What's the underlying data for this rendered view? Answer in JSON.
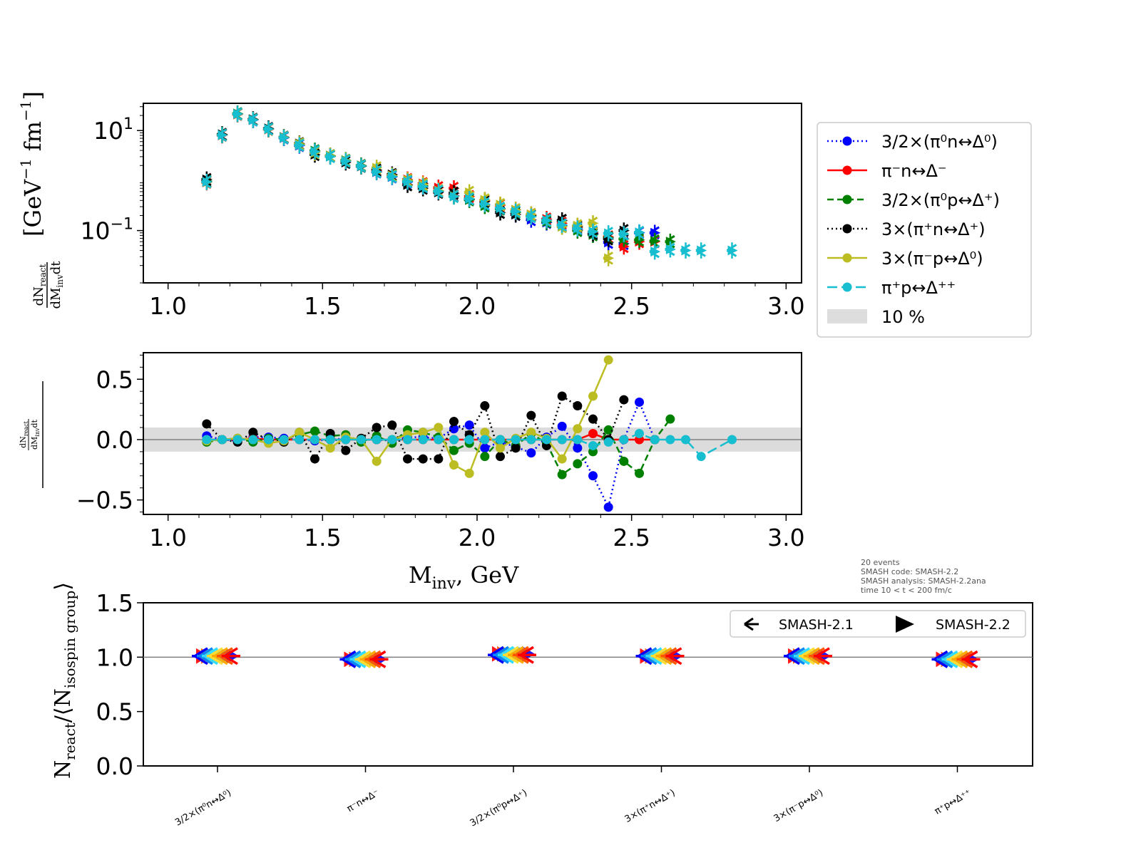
{
  "info_box": {
    "line1": "20 events",
    "line2": "SMASH code:      SMASH-2.2",
    "line3": "SMASH analysis: SMASH-2.2ana",
    "line4": "time 10 < t < 200 fm/c"
  },
  "chart_data": [
    {
      "type": "scatter",
      "panel": "top",
      "ylabel_prefix": "dN",
      "ylabel_prefix_sub": "react",
      "ylabel_denominator": "dM",
      "ylabel_denominator_sub": "inv",
      "ylabel_denominator_suffix": "dt",
      "ylabel_units": "[GeV",
      "ylabel_units_sup": "−1",
      "ylabel_units_tail": "fm",
      "ylabel_units_tail_sup": "−1",
      "ylabel_units_close": "]",
      "yscale": "log",
      "ylim": [
        0.009,
        35
      ],
      "xlim": [
        0.92,
        3.05
      ],
      "xticks": [
        "1.0",
        "1.5",
        "2.0",
        "2.5",
        "3.0"
      ],
      "yticks": [
        {
          "value": 10,
          "base": "10",
          "exp": "1"
        },
        {
          "value": 0.1,
          "base": "10",
          "exp": "−1"
        }
      ],
      "error_bars": true,
      "markers": "SMASH-2.1 (tri-left) and SMASH-2.2 (triangle-right), overlaid",
      "series": [
        {
          "name": "3/2×(π⁰n↔Δ⁰)",
          "color": "#0000ff",
          "x": [
            1.125,
            1.175,
            1.225,
            1.275,
            1.325,
            1.375,
            1.425,
            1.475,
            1.525,
            1.575,
            1.625,
            1.675,
            1.725,
            1.775,
            1.825,
            1.875,
            1.925,
            1.975,
            2.025,
            2.075,
            2.125,
            2.175,
            2.225,
            2.275,
            2.325,
            2.375,
            2.425,
            2.475,
            2.525,
            2.575
          ],
          "y": [
            0.95,
            8.2,
            21.5,
            16.2,
            10.8,
            7.1,
            5.0,
            3.8,
            3.05,
            2.45,
            1.95,
            1.48,
            1.18,
            0.93,
            0.75,
            0.61,
            0.5,
            0.42,
            0.33,
            0.27,
            0.21,
            0.165,
            0.145,
            0.128,
            0.105,
            0.085,
            0.058,
            0.055,
            0.09,
            0.09
          ]
        },
        {
          "name": "π⁻n↔Δ⁻",
          "color": "#ff0000",
          "x": [
            1.125,
            1.175,
            1.225,
            1.275,
            1.325,
            1.375,
            1.425,
            1.475,
            1.525,
            1.575,
            1.625,
            1.675,
            1.725,
            1.775,
            1.825,
            1.875,
            1.925,
            1.975,
            2.025,
            2.075,
            2.125,
            2.175,
            2.225,
            2.275,
            2.325,
            2.375,
            2.425,
            2.475,
            2.525,
            2.575
          ],
          "y": [
            0.92,
            8.0,
            21.0,
            16.5,
            10.5,
            7.2,
            5.1,
            3.85,
            3.1,
            2.5,
            2.0,
            1.55,
            1.3,
            1.05,
            0.87,
            0.72,
            0.7,
            0.48,
            0.4,
            0.32,
            0.26,
            0.21,
            0.17,
            0.14,
            0.115,
            0.092,
            0.075,
            0.048,
            0.06,
            0.06
          ]
        },
        {
          "name": "3/2×(π⁰p↔Δ⁺)",
          "color": "#008000",
          "x": [
            1.125,
            1.175,
            1.225,
            1.275,
            1.325,
            1.375,
            1.425,
            1.475,
            1.525,
            1.575,
            1.625,
            1.675,
            1.725,
            1.775,
            1.825,
            1.875,
            1.925,
            1.975,
            2.025,
            2.075,
            2.125,
            2.175,
            2.225,
            2.275,
            2.325,
            2.375,
            2.425,
            2.475,
            2.525,
            2.575,
            2.625
          ],
          "y": [
            0.98,
            8.3,
            21.8,
            16.6,
            10.9,
            7.3,
            5.2,
            3.95,
            3.15,
            2.55,
            2.0,
            1.5,
            1.22,
            0.98,
            0.79,
            0.63,
            0.48,
            0.41,
            0.31,
            0.27,
            0.23,
            0.19,
            0.15,
            0.12,
            0.1,
            0.082,
            0.072,
            0.068,
            0.065,
            0.062,
            0.06
          ]
        },
        {
          "name": "3×(π⁺n↔Δ⁺)",
          "color": "#000000",
          "x": [
            1.125,
            1.175,
            1.225,
            1.275,
            1.325,
            1.375,
            1.425,
            1.475,
            1.525,
            1.575,
            1.625,
            1.675,
            1.725,
            1.775,
            1.825,
            1.875,
            1.925,
            1.975,
            2.025,
            2.075,
            2.125,
            2.175,
            2.225,
            2.275,
            2.325,
            2.375,
            2.425,
            2.475
          ],
          "y": [
            1.05,
            8.4,
            21.3,
            16.8,
            11.0,
            7.4,
            5.5,
            3.3,
            3.1,
            2.3,
            1.92,
            1.62,
            1.32,
            0.82,
            0.7,
            0.58,
            0.56,
            0.43,
            0.38,
            0.23,
            0.21,
            0.2,
            0.16,
            0.16,
            0.12,
            0.088,
            0.068,
            0.1
          ]
        },
        {
          "name": "3×(π⁻p↔Δ⁰)",
          "color": "#bcbd22",
          "x": [
            1.125,
            1.175,
            1.225,
            1.275,
            1.325,
            1.375,
            1.425,
            1.475,
            1.525,
            1.575,
            1.625,
            1.675,
            1.725,
            1.775,
            1.825,
            1.875,
            1.925,
            1.975,
            2.025,
            2.075,
            2.125,
            2.175,
            2.225,
            2.275,
            2.325,
            2.375,
            2.425
          ],
          "y": [
            0.93,
            8.1,
            21.2,
            16.4,
            10.6,
            7.3,
            5.4,
            3.6,
            3.12,
            2.5,
            1.96,
            1.8,
            1.26,
            1.02,
            0.84,
            0.63,
            0.49,
            0.58,
            0.41,
            0.33,
            0.26,
            0.21,
            0.16,
            0.12,
            0.125,
            0.14,
            0.028
          ]
        },
        {
          "name": "π⁺p↔Δ⁺⁺",
          "color": "#17becf",
          "x": [
            1.125,
            1.175,
            1.225,
            1.275,
            1.325,
            1.375,
            1.425,
            1.475,
            1.525,
            1.575,
            1.625,
            1.675,
            1.725,
            1.775,
            1.825,
            1.875,
            1.925,
            1.975,
            2.025,
            2.075,
            2.125,
            2.175,
            2.225,
            2.275,
            2.325,
            2.375,
            2.425,
            2.475,
            2.525,
            2.575,
            2.625,
            2.675,
            2.725,
            2.825
          ],
          "y": [
            0.94,
            8.1,
            21.4,
            16.3,
            10.7,
            7.2,
            5.1,
            3.8,
            3.0,
            2.45,
            1.95,
            1.5,
            1.2,
            0.95,
            0.76,
            0.61,
            0.48,
            0.43,
            0.34,
            0.28,
            0.24,
            0.19,
            0.16,
            0.13,
            0.11,
            0.095,
            0.088,
            0.085,
            0.092,
            0.038,
            0.042,
            0.04,
            0.04,
            0.04
          ]
        }
      ]
    },
    {
      "type": "line",
      "panel": "middle",
      "xlabel": "M",
      "xlabel_sub": "inv",
      "xlabel_tail": ", GeV",
      "ylabel_numerator": {
        "prefix": "dN",
        "sub": "react",
        "den": "dM",
        "den_sub": "inv",
        "den_tail": "dt"
      },
      "ylim": [
        -0.62,
        0.72
      ],
      "xlim": [
        0.92,
        3.05
      ],
      "xticks": [
        "1.0",
        "1.5",
        "2.0",
        "2.5",
        "3.0"
      ],
      "yticks": [
        "0.5",
        "0.0",
        "−0.5"
      ],
      "yticks_values": [
        0.5,
        0.0,
        -0.5
      ],
      "band": [
        -0.1,
        0.1
      ],
      "series": [
        {
          "name": "3/2×(π⁰n↔Δ⁰)",
          "color": "#0000ff",
          "dash": "2,4",
          "x": [
            1.125,
            1.175,
            1.225,
            1.275,
            1.325,
            1.375,
            1.425,
            1.475,
            1.525,
            1.575,
            1.625,
            1.675,
            1.725,
            1.775,
            1.825,
            1.875,
            1.925,
            1.975,
            2.025,
            2.075,
            2.125,
            2.175,
            2.225,
            2.275,
            2.325,
            2.375,
            2.425,
            2.475,
            2.525,
            2.575
          ],
          "y": [
            0.03,
            0.0,
            -0.01,
            0.02,
            0.02,
            0.01,
            0.0,
            -0.01,
            0.0,
            0.01,
            0.0,
            0.0,
            -0.01,
            0.02,
            0.02,
            0.01,
            0.09,
            0.12,
            -0.07,
            -0.02,
            -0.06,
            -0.11,
            0.02,
            0.11,
            -0.07,
            -0.3,
            -0.56,
            0.0,
            0.31,
            0.0
          ]
        },
        {
          "name": "π⁻n↔Δ⁻",
          "color": "#ff0000",
          "dash": "",
          "x": [
            1.125,
            1.175,
            1.225,
            1.275,
            1.325,
            1.375,
            1.425,
            1.475,
            1.525,
            1.575,
            1.625,
            1.675,
            1.725,
            1.775,
            1.825,
            1.875,
            1.925,
            1.975,
            2.025,
            2.075,
            2.125,
            2.175,
            2.225,
            2.275,
            2.325,
            2.375,
            2.425,
            2.475,
            2.525,
            2.575
          ],
          "y": [
            0.0,
            0.0,
            0.0,
            0.01,
            0.0,
            0.0,
            0.0,
            0.0,
            0.0,
            0.0,
            0.0,
            0.0,
            0.0,
            0.0,
            0.0,
            0.0,
            0.0,
            0.0,
            0.0,
            0.0,
            0.0,
            0.0,
            0.0,
            0.0,
            0.0,
            0.05,
            0.0,
            0.0,
            0.0,
            0.0
          ]
        },
        {
          "name": "3/2×(π⁰p↔Δ⁺)",
          "color": "#008000",
          "dash": "9,5",
          "x": [
            1.125,
            1.175,
            1.225,
            1.275,
            1.325,
            1.375,
            1.425,
            1.475,
            1.525,
            1.575,
            1.625,
            1.675,
            1.725,
            1.775,
            1.825,
            1.875,
            1.925,
            1.975,
            2.025,
            2.075,
            2.125,
            2.175,
            2.225,
            2.275,
            2.325,
            2.375,
            2.425,
            2.475,
            2.525,
            2.575,
            2.625
          ],
          "y": [
            -0.02,
            0.0,
            0.01,
            -0.02,
            0.01,
            0.0,
            0.04,
            0.07,
            0.03,
            0.04,
            -0.02,
            0.03,
            -0.03,
            0.08,
            0.06,
            0.02,
            -0.09,
            -0.03,
            -0.14,
            0.0,
            -0.05,
            0.05,
            -0.03,
            -0.29,
            -0.2,
            -0.1,
            0.08,
            -0.18,
            -0.28,
            0.0,
            0.17
          ]
        },
        {
          "name": "3×(π⁺n↔Δ⁺)",
          "color": "#000000",
          "dash": "2,4",
          "x": [
            1.125,
            1.175,
            1.225,
            1.275,
            1.325,
            1.375,
            1.425,
            1.475,
            1.525,
            1.575,
            1.625,
            1.675,
            1.725,
            1.775,
            1.825,
            1.875,
            1.925,
            1.975,
            2.025,
            2.075,
            2.125,
            2.175,
            2.225,
            2.275,
            2.325,
            2.375,
            2.425,
            2.475
          ],
          "y": [
            0.13,
            0.0,
            -0.02,
            0.06,
            0.0,
            -0.02,
            0.06,
            -0.16,
            0.05,
            -0.09,
            0.01,
            0.1,
            0.12,
            -0.16,
            -0.16,
            -0.16,
            0.15,
            0.04,
            0.28,
            -0.14,
            -0.07,
            0.2,
            -0.05,
            0.36,
            0.28,
            0.17,
            0.0,
            0.33
          ]
        },
        {
          "name": "3×(π⁻p↔Δ⁰)",
          "color": "#bcbd22",
          "dash": "",
          "x": [
            1.125,
            1.175,
            1.225,
            1.275,
            1.325,
            1.375,
            1.425,
            1.475,
            1.525,
            1.575,
            1.625,
            1.675,
            1.725,
            1.775,
            1.825,
            1.875,
            1.925,
            1.975,
            2.025,
            2.075,
            2.125,
            2.175,
            2.225,
            2.275,
            2.325,
            2.375,
            2.425
          ],
          "y": [
            -0.01,
            0.0,
            0.01,
            0.0,
            -0.03,
            -0.01,
            0.06,
            0.0,
            -0.07,
            0.02,
            0.0,
            -0.18,
            0.0,
            0.04,
            0.06,
            0.1,
            -0.21,
            -0.28,
            0.06,
            -0.07,
            0.01,
            0.06,
            0.01,
            -0.16,
            0.09,
            0.36,
            0.66
          ]
        },
        {
          "name": "π⁺p↔Δ⁺⁺",
          "color": "#17becf",
          "dash": "14,6",
          "x": [
            1.125,
            1.175,
            1.225,
            1.275,
            1.325,
            1.375,
            1.425,
            1.475,
            1.525,
            1.575,
            1.625,
            1.675,
            1.725,
            1.775,
            1.825,
            1.875,
            1.925,
            1.975,
            2.025,
            2.075,
            2.125,
            2.175,
            2.225,
            2.275,
            2.325,
            2.375,
            2.425,
            2.475,
            2.525,
            2.575,
            2.625,
            2.675,
            2.725,
            2.825
          ],
          "y": [
            0.0,
            0.0,
            0.0,
            0.0,
            0.0,
            0.0,
            0.0,
            0.0,
            0.0,
            0.0,
            0.0,
            0.0,
            0.0,
            0.0,
            0.0,
            0.0,
            0.0,
            0.0,
            0.0,
            0.0,
            0.0,
            0.0,
            0.0,
            0.0,
            0.0,
            -0.05,
            -0.02,
            0.0,
            0.05,
            0.0,
            0.0,
            0.0,
            -0.14,
            0.0
          ]
        }
      ],
      "legend": [
        {
          "label": "3/2×(π⁰n↔Δ⁰)",
          "color": "#0000ff",
          "dash": "2,4"
        },
        {
          "label": "π⁻n↔Δ⁻",
          "color": "#ff0000",
          "dash": ""
        },
        {
          "label": "3/2×(π⁰p↔Δ⁺)",
          "color": "#008000",
          "dash": "9,5"
        },
        {
          "label": "3×(π⁺n↔Δ⁺)",
          "color": "#000000",
          "dash": "2,4"
        },
        {
          "label": "3×(π⁻p↔Δ⁰)",
          "color": "#bcbd22",
          "dash": ""
        },
        {
          "label": "π⁺p↔Δ⁺⁺",
          "color": "#17becf",
          "dash": "14,6"
        },
        {
          "label": "10 %",
          "color": "#dddddd",
          "band": true
        }
      ]
    },
    {
      "type": "scatter",
      "panel": "bottom",
      "ylabel": "N",
      "ylabel_sub": "react",
      "ylabel_mid": "/⟨N",
      "ylabel_sub2": "isospin group",
      "ylabel_close": "⟩",
      "ylim": [
        0.0,
        1.5
      ],
      "yticks": [
        "0.0",
        "0.5",
        "1.0",
        "1.5"
      ],
      "yticks_values": [
        0.0,
        0.5,
        1.0,
        1.5
      ],
      "hline": 1.0,
      "categories": [
        "3/2×(π⁰n↔Δ⁰)",
        "π⁻n↔Δ⁻",
        "3/2×(π⁰p↔Δ⁺)",
        "3×(π⁺n↔Δ⁺)",
        "3×(π⁻p↔Δ⁰)",
        "π⁺p↔Δ⁺⁺"
      ],
      "series": [
        {
          "name": "SMASH-2.1",
          "marker": "tri-left",
          "values": [
            1.01,
            0.98,
            1.02,
            1.01,
            1.01,
            0.98
          ]
        },
        {
          "name": "SMASH-2.2",
          "marker": "triangle-right",
          "values": [
            1.01,
            0.98,
            1.03,
            1.01,
            1.01,
            0.98
          ]
        }
      ],
      "legend": [
        {
          "label": "SMASH-2.1",
          "marker": "tri-left"
        },
        {
          "label": "SMASH-2.2",
          "marker": "triangle-right"
        }
      ]
    }
  ]
}
